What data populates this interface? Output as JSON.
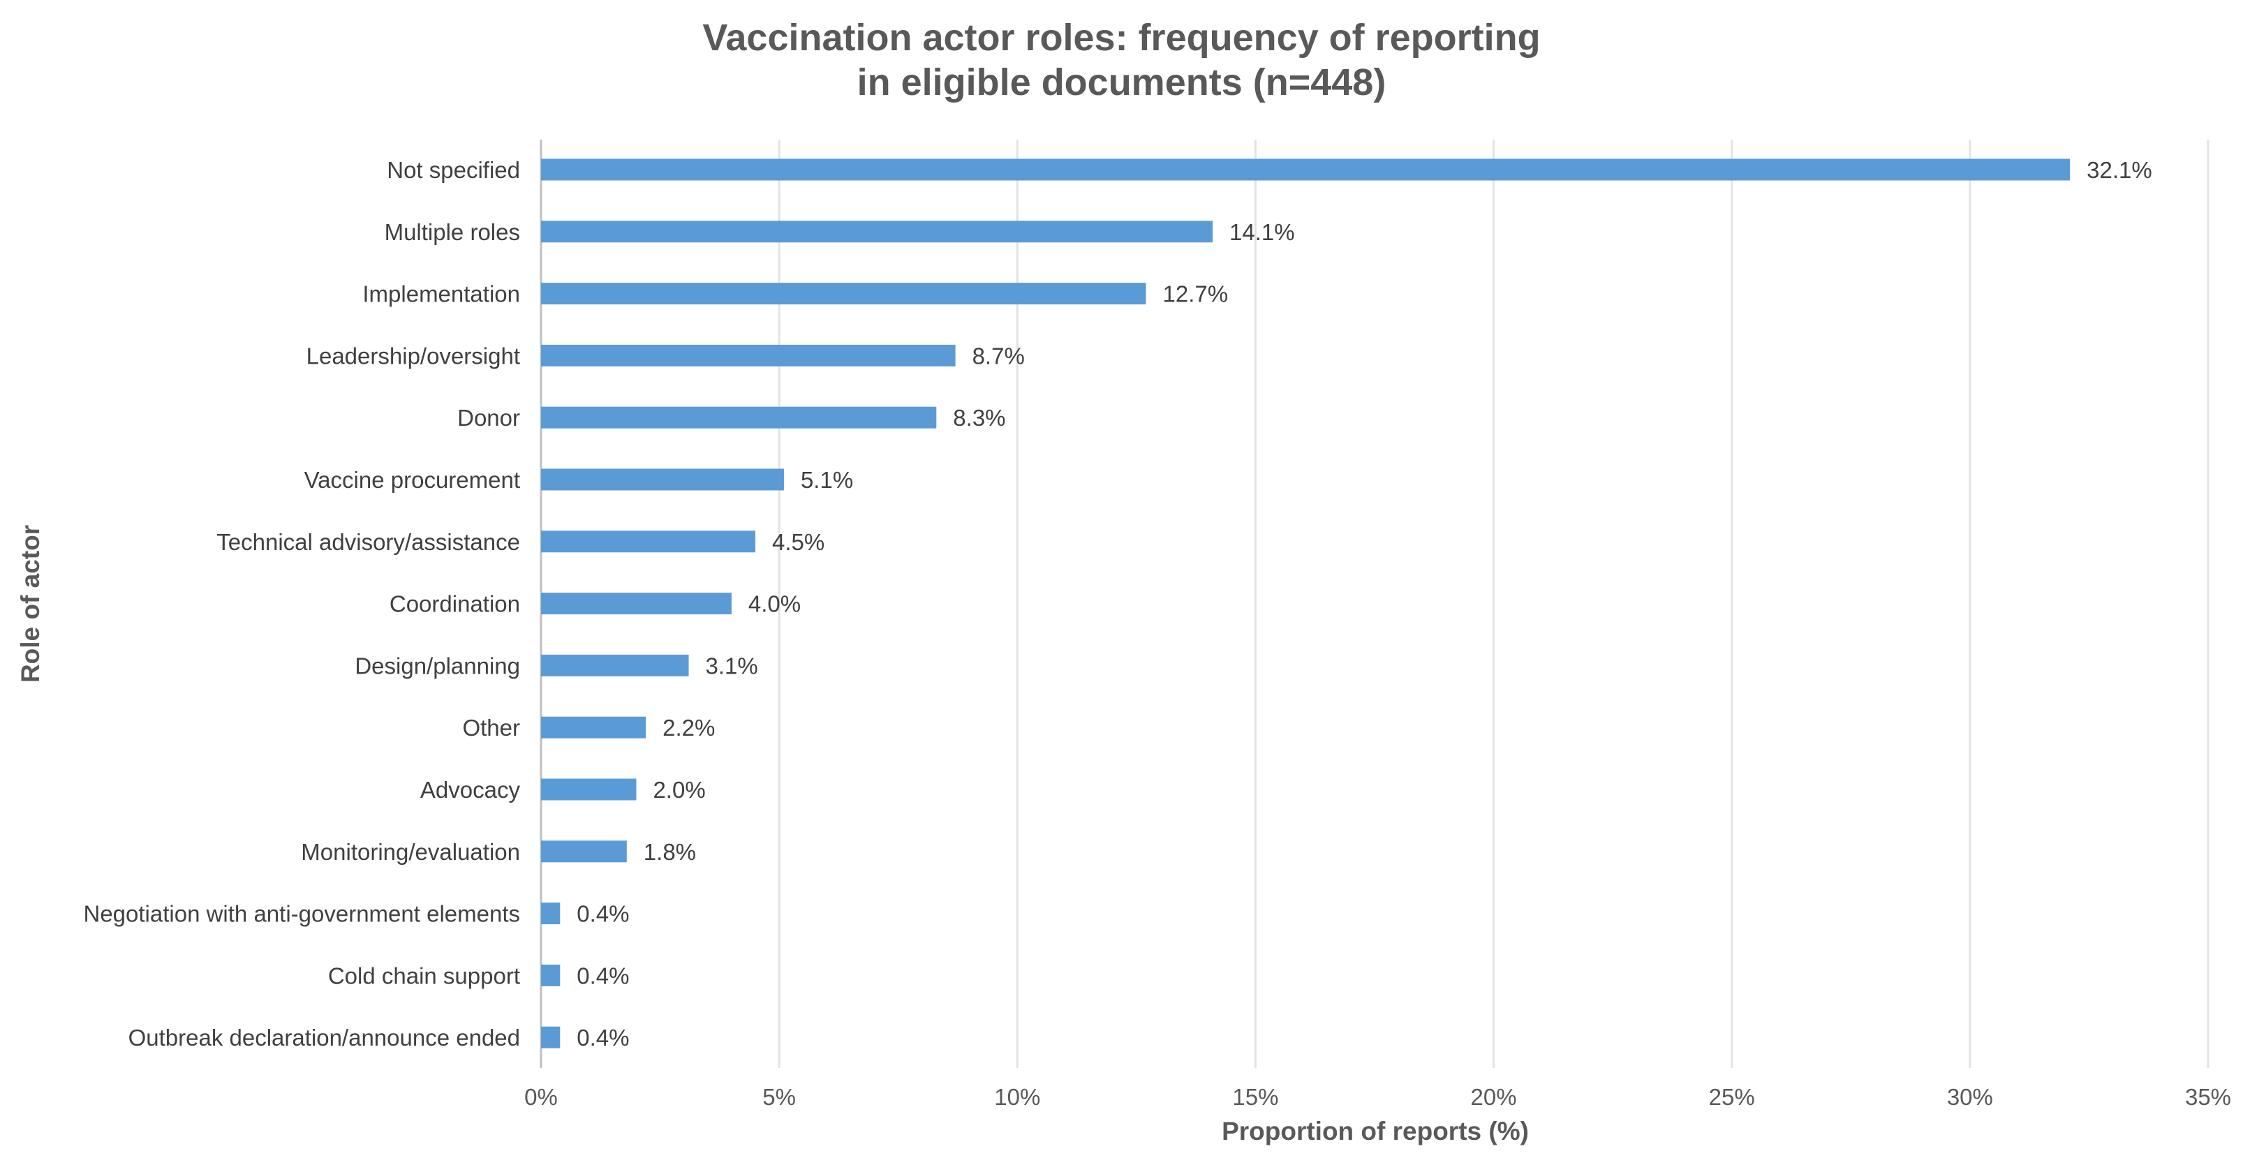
{
  "chart_data": {
    "type": "bar",
    "orientation": "horizontal",
    "title": [
      "Vaccination actor roles: frequency of reporting",
      "in eligible documents (n=448)"
    ],
    "xlabel": "Proportion of reports (%)",
    "ylabel": "Role of actor",
    "xlim": [
      0,
      35
    ],
    "xticks": [
      0,
      5,
      10,
      15,
      20,
      25,
      30,
      35
    ],
    "xtick_labels": [
      "0%",
      "5%",
      "10%",
      "15%",
      "20%",
      "25%",
      "30%",
      "35%"
    ],
    "grid": "vertical",
    "bar_color": "#5b9bd5",
    "categories": [
      "Not specified",
      "Multiple roles",
      "Implementation",
      "Leadership/oversight",
      "Donor",
      "Vaccine procurement",
      "Technical advisory/assistance",
      "Coordination",
      "Design/planning",
      "Other",
      "Advocacy",
      "Monitoring/evaluation",
      "Negotiation with anti-government elements",
      "Cold chain support",
      "Outbreak declaration/announce ended"
    ],
    "values": [
      32.1,
      14.1,
      12.7,
      8.7,
      8.3,
      5.1,
      4.5,
      4.0,
      3.1,
      2.2,
      2.0,
      1.8,
      0.4,
      0.4,
      0.4
    ],
    "data_labels": [
      "32.1%",
      "14.1%",
      "12.7%",
      "8.7%",
      "8.3%",
      "5.1%",
      "4.5%",
      "4.0%",
      "3.1%",
      "2.2%",
      "2.0%",
      "1.8%",
      "0.4%",
      "0.4%",
      "0.4%"
    ]
  }
}
